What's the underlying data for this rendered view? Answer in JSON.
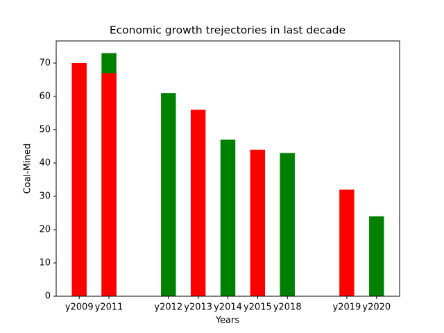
{
  "chart_data": {
    "type": "bar",
    "title": "Economic growth trejectories in last decade",
    "xlabel": "Years",
    "ylabel": "Coal-Mined",
    "series": [
      {
        "color": "#008000",
        "x": [
          1,
          3,
          5,
          7,
          10
        ],
        "values": [
          73,
          61,
          47,
          43,
          24
        ]
      },
      {
        "color": "#ff0000",
        "x": [
          0,
          1,
          4,
          6,
          9
        ],
        "values": [
          70,
          67,
          56,
          44,
          32
        ]
      }
    ],
    "bar_width": 0.5,
    "xlim": [
      -0.775,
      10.775
    ],
    "ylim": [
      0,
      76.65
    ],
    "xticks": [
      {
        "value": 0,
        "label": "y2009"
      },
      {
        "value": 1,
        "label": "y2011"
      },
      {
        "value": 3,
        "label": "y2012"
      },
      {
        "value": 4,
        "label": "y2013"
      },
      {
        "value": 5,
        "label": "y2014"
      },
      {
        "value": 6,
        "label": "y2015"
      },
      {
        "value": 7,
        "label": "y2018"
      },
      {
        "value": 9,
        "label": "y2019"
      },
      {
        "value": 10,
        "label": "y2020"
      }
    ],
    "yticks": [
      0,
      10,
      20,
      30,
      40,
      50,
      60,
      70
    ],
    "grid": false
  }
}
